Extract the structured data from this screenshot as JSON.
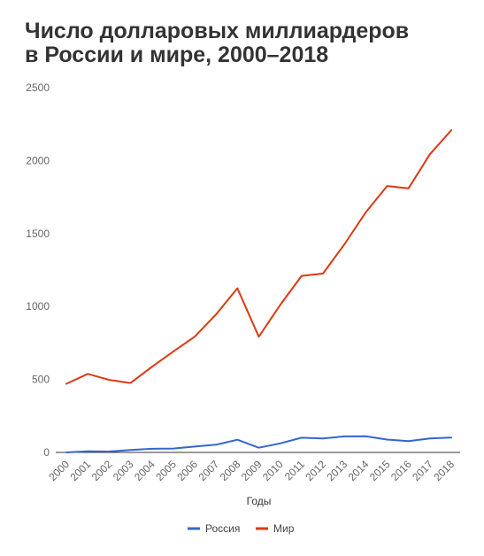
{
  "title_line1": "Число долларовых миллиардеров",
  "title_line2": "в России и мире, 2000–2018",
  "chart_data": {
    "type": "line",
    "title": "Число долларовых миллиардеров в России и мире, 2000–2018",
    "xlabel": "Годы",
    "ylabel": "",
    "ylim": [
      0,
      2500
    ],
    "yticks": [
      0,
      500,
      1000,
      1500,
      2000,
      2500
    ],
    "grid": false,
    "legend_position": "bottom",
    "x": [
      "2000",
      "2001",
      "2002",
      "2003",
      "2004",
      "2005",
      "2006",
      "2007",
      "2008",
      "2009",
      "2010",
      "2011",
      "2012",
      "2013",
      "2014",
      "2015",
      "2016",
      "2017",
      "2018"
    ],
    "series": [
      {
        "name": "Россия",
        "color": "#3366cc",
        "values": [
          0,
          8,
          6,
          17,
          25,
          27,
          40,
          53,
          87,
          32,
          62,
          101,
          96,
          110,
          111,
          88,
          77,
          96,
          102
        ]
      },
      {
        "name": "Мир",
        "color": "#dc3912",
        "values": [
          470,
          538,
          497,
          476,
          587,
          691,
          793,
          946,
          1125,
          793,
          1011,
          1210,
          1226,
          1426,
          1645,
          1826,
          1810,
          2043,
          2208
        ]
      }
    ]
  }
}
